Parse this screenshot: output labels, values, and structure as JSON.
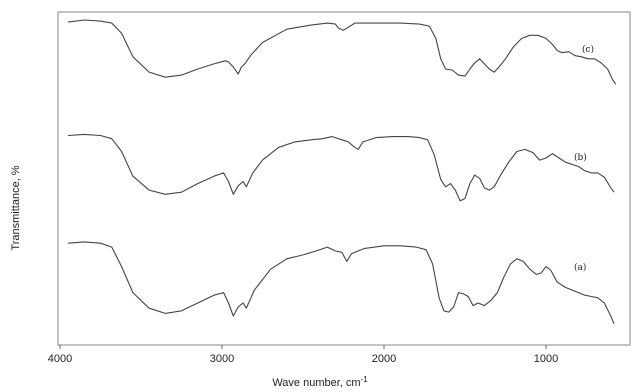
{
  "chart_data": {
    "type": "line",
    "title": "",
    "xlabel": "Wave number, cm",
    "xlabel_sup": "-1",
    "ylabel": "Transmittance, %",
    "xlim": [
      4000,
      550
    ],
    "x_reversed": true,
    "x_ticks": [
      4000,
      3000,
      2000,
      1000
    ],
    "y_ticks_shown": false,
    "grid": false,
    "line_color": "#444444",
    "series": [
      {
        "name": "(c)",
        "points": [
          [
            3950,
            0.96
          ],
          [
            3850,
            0.98
          ],
          [
            3750,
            0.97
          ],
          [
            3680,
            0.95
          ],
          [
            3620,
            0.85
          ],
          [
            3550,
            0.62
          ],
          [
            3450,
            0.47
          ],
          [
            3350,
            0.42
          ],
          [
            3250,
            0.44
          ],
          [
            3150,
            0.5
          ],
          [
            3050,
            0.55
          ],
          [
            2980,
            0.58
          ],
          [
            2960,
            0.57
          ],
          [
            2930,
            0.52
          ],
          [
            2900,
            0.45
          ],
          [
            2880,
            0.52
          ],
          [
            2860,
            0.55
          ],
          [
            2820,
            0.64
          ],
          [
            2750,
            0.76
          ],
          [
            2600,
            0.89
          ],
          [
            2450,
            0.93
          ],
          [
            2350,
            0.95
          ],
          [
            2300,
            0.94
          ],
          [
            2280,
            0.9
          ],
          [
            2250,
            0.88
          ],
          [
            2220,
            0.91
          ],
          [
            2180,
            0.95
          ],
          [
            2050,
            0.95
          ],
          [
            1900,
            0.95
          ],
          [
            1780,
            0.94
          ],
          [
            1720,
            0.92
          ],
          [
            1680,
            0.8
          ],
          [
            1650,
            0.6
          ],
          [
            1620,
            0.5
          ],
          [
            1580,
            0.49
          ],
          [
            1540,
            0.44
          ],
          [
            1500,
            0.43
          ],
          [
            1470,
            0.5
          ],
          [
            1440,
            0.56
          ],
          [
            1410,
            0.6
          ],
          [
            1380,
            0.55
          ],
          [
            1350,
            0.5
          ],
          [
            1320,
            0.47
          ],
          [
            1290,
            0.52
          ],
          [
            1250,
            0.6
          ],
          [
            1200,
            0.72
          ],
          [
            1150,
            0.8
          ],
          [
            1100,
            0.83
          ],
          [
            1050,
            0.83
          ],
          [
            1000,
            0.8
          ],
          [
            960,
            0.74
          ],
          [
            930,
            0.68
          ],
          [
            900,
            0.66
          ],
          [
            860,
            0.67
          ],
          [
            820,
            0.63
          ],
          [
            780,
            0.62
          ],
          [
            740,
            0.6
          ],
          [
            700,
            0.6
          ],
          [
            660,
            0.56
          ],
          [
            620,
            0.5
          ],
          [
            590,
            0.4
          ],
          [
            570,
            0.35
          ]
        ],
        "label_at": [
          1000,
          0.88
        ]
      },
      {
        "name": "(b)",
        "points": [
          [
            3950,
            0.93
          ],
          [
            3850,
            0.94
          ],
          [
            3750,
            0.93
          ],
          [
            3680,
            0.9
          ],
          [
            3620,
            0.78
          ],
          [
            3550,
            0.55
          ],
          [
            3450,
            0.42
          ],
          [
            3350,
            0.38
          ],
          [
            3250,
            0.4
          ],
          [
            3150,
            0.48
          ],
          [
            3050,
            0.55
          ],
          [
            2990,
            0.58
          ],
          [
            2960,
            0.5
          ],
          [
            2930,
            0.38
          ],
          [
            2900,
            0.46
          ],
          [
            2870,
            0.5
          ],
          [
            2850,
            0.45
          ],
          [
            2810,
            0.58
          ],
          [
            2750,
            0.7
          ],
          [
            2650,
            0.82
          ],
          [
            2550,
            0.87
          ],
          [
            2450,
            0.89
          ],
          [
            2380,
            0.9
          ],
          [
            2320,
            0.92
          ],
          [
            2260,
            0.89
          ],
          [
            2220,
            0.87
          ],
          [
            2190,
            0.83
          ],
          [
            2160,
            0.8
          ],
          [
            2130,
            0.87
          ],
          [
            2050,
            0.91
          ],
          [
            1950,
            0.92
          ],
          [
            1850,
            0.92
          ],
          [
            1780,
            0.91
          ],
          [
            1730,
            0.89
          ],
          [
            1690,
            0.75
          ],
          [
            1650,
            0.52
          ],
          [
            1620,
            0.45
          ],
          [
            1590,
            0.48
          ],
          [
            1560,
            0.42
          ],
          [
            1530,
            0.32
          ],
          [
            1500,
            0.34
          ],
          [
            1470,
            0.48
          ],
          [
            1440,
            0.56
          ],
          [
            1410,
            0.53
          ],
          [
            1380,
            0.44
          ],
          [
            1350,
            0.42
          ],
          [
            1320,
            0.45
          ],
          [
            1280,
            0.56
          ],
          [
            1230,
            0.68
          ],
          [
            1180,
            0.78
          ],
          [
            1130,
            0.8
          ],
          [
            1080,
            0.77
          ],
          [
            1040,
            0.7
          ],
          [
            1000,
            0.72
          ],
          [
            960,
            0.76
          ],
          [
            920,
            0.72
          ],
          [
            880,
            0.68
          ],
          [
            840,
            0.66
          ],
          [
            800,
            0.64
          ],
          [
            760,
            0.6
          ],
          [
            720,
            0.58
          ],
          [
            680,
            0.58
          ],
          [
            640,
            0.54
          ],
          [
            600,
            0.44
          ],
          [
            580,
            0.4
          ]
        ],
        "label_at": [
          995,
          0.88
        ]
      },
      {
        "name": "(a)",
        "points": [
          [
            3950,
            0.86
          ],
          [
            3850,
            0.87
          ],
          [
            3750,
            0.86
          ],
          [
            3680,
            0.83
          ],
          [
            3620,
            0.68
          ],
          [
            3550,
            0.48
          ],
          [
            3450,
            0.36
          ],
          [
            3350,
            0.32
          ],
          [
            3250,
            0.34
          ],
          [
            3150,
            0.4
          ],
          [
            3050,
            0.46
          ],
          [
            2990,
            0.48
          ],
          [
            2960,
            0.4
          ],
          [
            2930,
            0.3
          ],
          [
            2900,
            0.37
          ],
          [
            2870,
            0.4
          ],
          [
            2850,
            0.36
          ],
          [
            2800,
            0.5
          ],
          [
            2700,
            0.66
          ],
          [
            2600,
            0.74
          ],
          [
            2500,
            0.77
          ],
          [
            2420,
            0.8
          ],
          [
            2350,
            0.83
          ],
          [
            2300,
            0.8
          ],
          [
            2260,
            0.79
          ],
          [
            2230,
            0.72
          ],
          [
            2200,
            0.78
          ],
          [
            2120,
            0.82
          ],
          [
            2000,
            0.84
          ],
          [
            1900,
            0.84
          ],
          [
            1800,
            0.83
          ],
          [
            1740,
            0.81
          ],
          [
            1700,
            0.7
          ],
          [
            1660,
            0.44
          ],
          [
            1630,
            0.34
          ],
          [
            1600,
            0.33
          ],
          [
            1570,
            0.37
          ],
          [
            1540,
            0.48
          ],
          [
            1510,
            0.47
          ],
          [
            1480,
            0.45
          ],
          [
            1450,
            0.38
          ],
          [
            1420,
            0.4
          ],
          [
            1380,
            0.38
          ],
          [
            1340,
            0.42
          ],
          [
            1300,
            0.48
          ],
          [
            1260,
            0.6
          ],
          [
            1220,
            0.7
          ],
          [
            1180,
            0.74
          ],
          [
            1140,
            0.72
          ],
          [
            1100,
            0.66
          ],
          [
            1060,
            0.62
          ],
          [
            1030,
            0.63
          ],
          [
            1000,
            0.68
          ],
          [
            970,
            0.65
          ],
          [
            930,
            0.56
          ],
          [
            880,
            0.52
          ],
          [
            840,
            0.5
          ],
          [
            800,
            0.48
          ],
          [
            760,
            0.46
          ],
          [
            720,
            0.45
          ],
          [
            680,
            0.44
          ],
          [
            640,
            0.4
          ],
          [
            600,
            0.3
          ],
          [
            580,
            0.24
          ]
        ],
        "label_at": [
          985,
          0.88
        ]
      }
    ]
  }
}
